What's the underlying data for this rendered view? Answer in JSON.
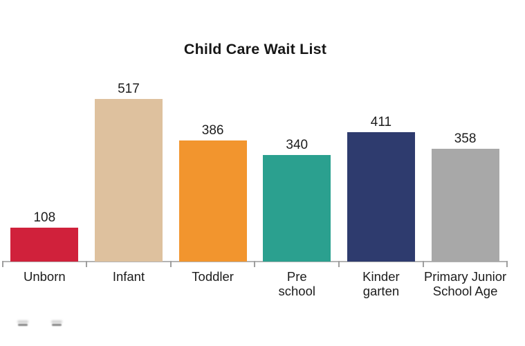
{
  "chart_data": {
    "type": "bar",
    "title": "Child Care Wait List",
    "categories": [
      "Unborn",
      "Infant",
      "Toddler",
      "Pre school",
      "Kinder garten",
      "Primary Junior School Age"
    ],
    "category_display_lines": [
      [
        "Unborn"
      ],
      [
        "Infant"
      ],
      [
        "Toddler"
      ],
      [
        "Pre",
        "school"
      ],
      [
        "Kinder",
        "garten"
      ],
      [
        "Primary Junior",
        "School Age"
      ]
    ],
    "values": [
      108,
      517,
      386,
      340,
      411,
      358
    ],
    "data_labels": [
      "108",
      "517",
      "386",
      "340",
      "411",
      "358"
    ],
    "bar_colors": [
      "#d0213b",
      "#dec19e",
      "#f2952e",
      "#2ba08f",
      "#2e3b6e",
      "#a8a8a8"
    ],
    "xlabel": "",
    "ylabel": "",
    "ylim": [
      0,
      560
    ],
    "grid": false,
    "legend": false,
    "data_labels_position": "above-bars",
    "axis": {
      "baseline_color": "#b3b3b3",
      "tick_color": "#9e9e9e",
      "ticks_at_category_boundaries": true
    },
    "title_color": "#171717",
    "label_color": "#1c1c1c",
    "background": "#ffffff"
  },
  "artifacts": {
    "bottom_left_fragments": {
      "count": 2,
      "legible": false
    }
  }
}
